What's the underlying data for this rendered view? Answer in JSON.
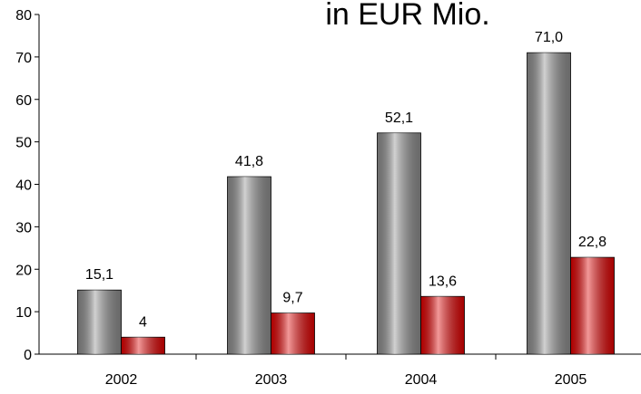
{
  "chart_data": {
    "type": "bar",
    "title": "in EUR Mio.",
    "categories": [
      "2002",
      "2003",
      "2004",
      "2005"
    ],
    "series": [
      {
        "color": "#8c8c8c",
        "values": [
          15.1,
          41.8,
          52.1,
          71.0
        ],
        "value_labels": [
          "15,1",
          "41,8",
          "52,1",
          "71,0"
        ]
      },
      {
        "color": "#e00000",
        "values": [
          4,
          9.7,
          13.6,
          22.8
        ],
        "value_labels": [
          "4",
          "9,7",
          "13,6",
          "22,8"
        ]
      }
    ],
    "ylim": [
      0,
      80
    ],
    "yticks": [
      0,
      10,
      20,
      30,
      40,
      50,
      60,
      70,
      80
    ],
    "grid": false
  }
}
